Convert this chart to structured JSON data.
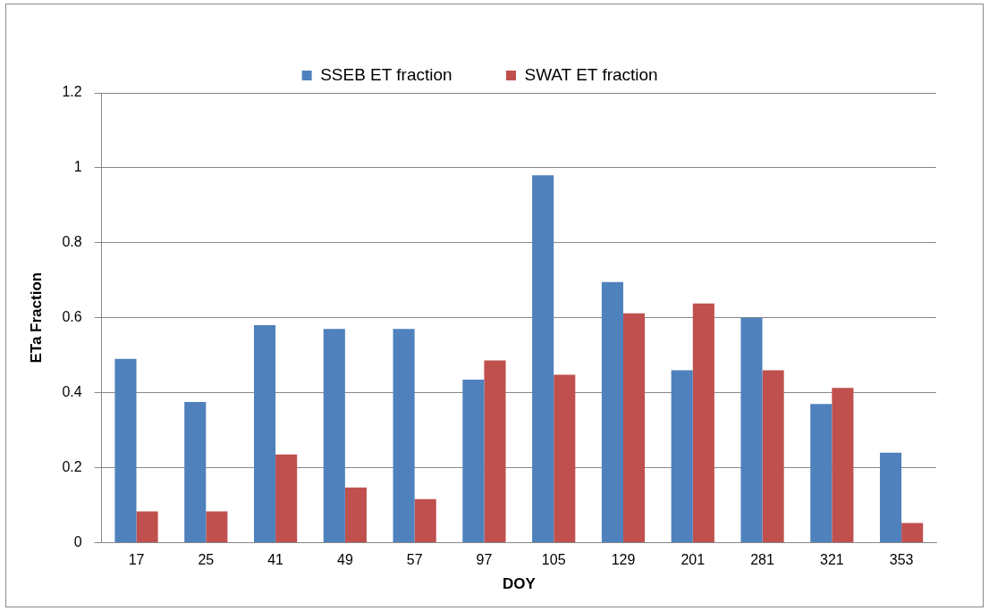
{
  "chart_data": {
    "type": "bar",
    "xlabel": "DOY",
    "ylabel": "ETa Fraction",
    "categories": [
      "17",
      "25",
      "41",
      "49",
      "57",
      "97",
      "105",
      "129",
      "201",
      "281",
      "321",
      "353"
    ],
    "series": [
      {
        "name": "SSEB ET fraction",
        "color": "#4f81bd",
        "values": [
          0.49,
          0.375,
          0.58,
          0.57,
          0.57,
          0.435,
          0.98,
          0.695,
          0.46,
          0.6,
          0.37,
          0.24
        ]
      },
      {
        "name": "SWAT ET fraction",
        "color": "#c0504d",
        "values": [
          0.083,
          0.083,
          0.235,
          0.147,
          0.116,
          0.486,
          0.448,
          0.612,
          0.638,
          0.46,
          0.413,
          0.052
        ]
      }
    ],
    "ylim": [
      0,
      1.2
    ],
    "yticks": [
      0,
      0.2,
      0.4,
      0.6,
      0.8,
      1,
      1.2
    ],
    "grid": "y",
    "legend": "top"
  }
}
